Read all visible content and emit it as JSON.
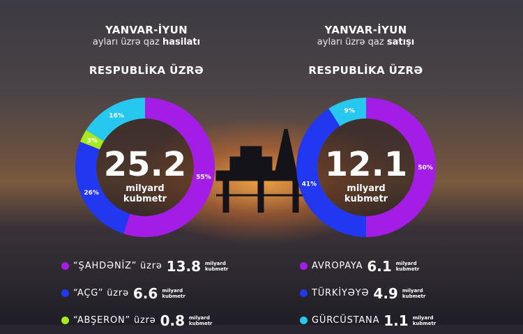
{
  "colors": {
    "purple": "#a41de6",
    "blue": "#2237f0",
    "lime": "#a6ea1f",
    "cyan": "#27c8f0"
  },
  "left": {
    "title_line1": "YANVAR-İYUN",
    "title_line2_plain": "ayları üzrə qaz",
    "title_line2_bold": "hasilatı",
    "subtitle": "RESPUBLİKA ÜZRƏ",
    "center_value": "25.2",
    "center_unit_line1": "milyard",
    "center_unit_line2": "kubmetr",
    "legend": [
      {
        "name": "“ŞAHDƏNİZ” üzrə",
        "value": "13.8",
        "unit1": "milyard",
        "unit2": "kubmetr",
        "color": "#a41de6"
      },
      {
        "name": "“AÇG” üzrə",
        "value": "6.6",
        "unit1": "milyard",
        "unit2": "kubmetr",
        "color": "#2237f0"
      },
      {
        "name": "“ABŞERON” üzrə",
        "value": "0.8",
        "unit1": "milyard",
        "unit2": "kubmetr",
        "color": "#a6ea1f"
      }
    ]
  },
  "right": {
    "title_line1": "YANVAR-İYUN",
    "title_line2_plain": "ayları üzrə qaz",
    "title_line2_bold": "satışı",
    "subtitle": "RESPUBLİKA ÜZRƏ",
    "center_value": "12.1",
    "center_unit_line1": "milyard",
    "center_unit_line2": "kubmetr",
    "legend": [
      {
        "name": "AVROPAYA",
        "value": "6.1",
        "unit1": "milyard",
        "unit2": "kubmetr",
        "color": "#a41de6"
      },
      {
        "name": "TÜRKİYƏYƏ",
        "value": "4.9",
        "unit1": "milyard",
        "unit2": "kubmetr",
        "color": "#2237f0"
      },
      {
        "name": "GÜRCÜSTANA",
        "value": "1.1",
        "unit1": "milyard",
        "unit2": "kubmetr",
        "color": "#27c8f0"
      }
    ]
  },
  "chart_data": [
    {
      "type": "pie",
      "title": "YANVAR-İYUN ayları üzrə qaz hasilatı — RESPUBLİKA ÜZRƏ",
      "total": 25.2,
      "slices": [
        {
          "label": "55%",
          "value": 55,
          "color": "#a41de6"
        },
        {
          "label": "26%",
          "value": 26,
          "color": "#2237f0"
        },
        {
          "label": "3%",
          "value": 3,
          "color": "#a6ea1f"
        },
        {
          "label": "16%",
          "value": 16,
          "color": "#27c8f0"
        }
      ]
    },
    {
      "type": "pie",
      "title": "YANVAR-İYUN ayları üzrə qaz satışı — RESPUBLİKA ÜZRƏ",
      "total": 12.1,
      "slices": [
        {
          "label": "50%",
          "value": 50,
          "color": "#a41de6"
        },
        {
          "label": "41%",
          "value": 41,
          "color": "#2237f0"
        },
        {
          "label": "9%",
          "value": 9,
          "color": "#27c8f0"
        }
      ]
    }
  ]
}
